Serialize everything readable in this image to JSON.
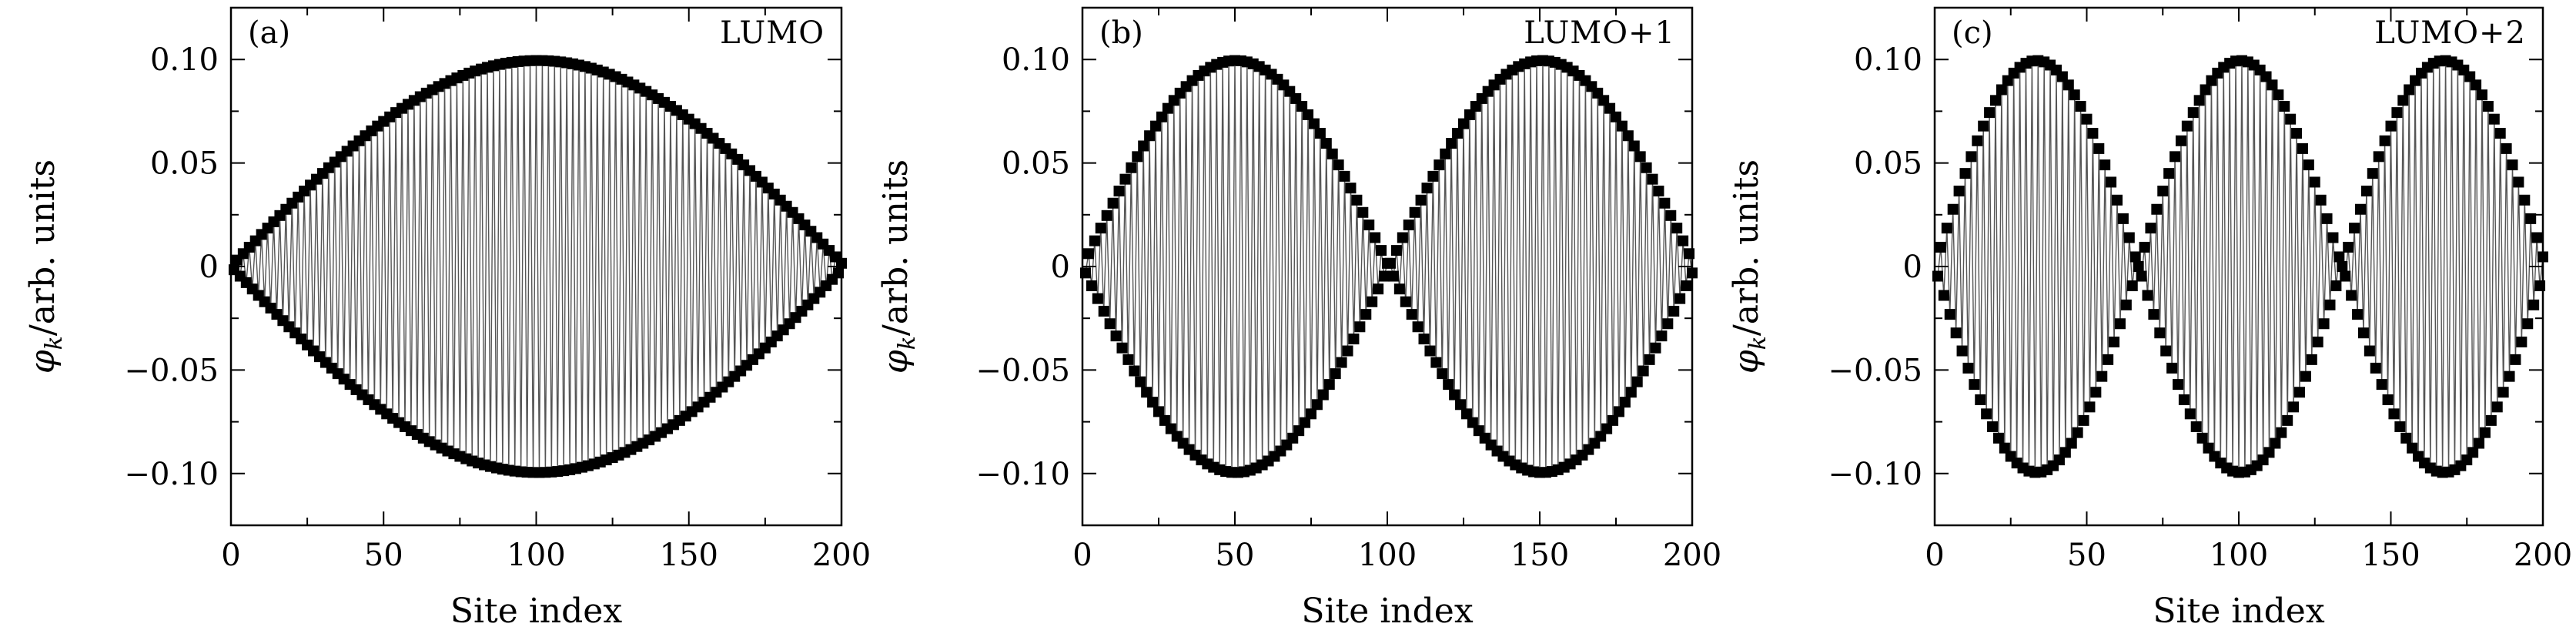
{
  "chart_data": [
    {
      "type": "line",
      "panel_label": "(a)",
      "title": "LUMO",
      "xlabel": "Site index",
      "ylabel": "φk/arb. units",
      "ylabel_main": "φ",
      "ylabel_sub": "k",
      "ylabel_rest": "/arb. units",
      "xlim": [
        0,
        200
      ],
      "ylim": [
        -0.125,
        0.125
      ],
      "xticks": [
        0,
        50,
        100,
        150,
        200
      ],
      "xtick_labels": [
        "0",
        "50",
        "100",
        "150",
        "200"
      ],
      "yticks": [
        0.1,
        0.05,
        0,
        -0.05,
        -0.1
      ],
      "ytick_labels": [
        "0.10",
        "0.05",
        "0",
        "−0.05",
        "−0.10"
      ],
      "series": [
        {
          "marker": "square",
          "style": "markers-with-thin-line",
          "formula": "y = 0.0995 * (-1)^n * sin(1 * pi * n / 201), n = 1..200",
          "n_start": 1,
          "n_end": 200,
          "amplitude": 0.0995,
          "envelope_halfwaves": 1,
          "alternating_sign": true
        }
      ],
      "grid": false,
      "legend": "none"
    },
    {
      "type": "line",
      "panel_label": "(b)",
      "title": "LUMO+1",
      "xlabel": "Site index",
      "ylabel": "φk/arb. units",
      "ylabel_main": "φ",
      "ylabel_sub": "k",
      "ylabel_rest": "/arb. units",
      "xlim": [
        0,
        200
      ],
      "ylim": [
        -0.125,
        0.125
      ],
      "xticks": [
        0,
        50,
        100,
        150,
        200
      ],
      "xtick_labels": [
        "0",
        "50",
        "100",
        "150",
        "200"
      ],
      "yticks": [
        0.1,
        0.05,
        0,
        -0.05,
        -0.1
      ],
      "ytick_labels": [
        "0.10",
        "0.05",
        "0",
        "−0.05",
        "−0.10"
      ],
      "series": [
        {
          "marker": "square",
          "style": "markers-with-thin-line",
          "formula": "y = 0.0995 * (-1)^n * sin(2 * pi * n / 201), n = 1..200",
          "n_start": 1,
          "n_end": 200,
          "amplitude": 0.0995,
          "envelope_halfwaves": 2,
          "alternating_sign": true
        }
      ],
      "grid": false,
      "legend": "none"
    },
    {
      "type": "line",
      "panel_label": "(c)",
      "title": "LUMO+2",
      "xlabel": "Site index",
      "ylabel": "φk/arb. units",
      "ylabel_main": "φ",
      "ylabel_sub": "k",
      "ylabel_rest": "/arb. units",
      "xlim": [
        0,
        200
      ],
      "ylim": [
        -0.125,
        0.125
      ],
      "xticks": [
        0,
        50,
        100,
        150,
        200
      ],
      "xtick_labels": [
        "0",
        "50",
        "100",
        "150",
        "200"
      ],
      "yticks": [
        0.1,
        0.05,
        0,
        -0.05,
        -0.1
      ],
      "ytick_labels": [
        "0.10",
        "0.05",
        "0",
        "−0.05",
        "−0.10"
      ],
      "series": [
        {
          "marker": "square",
          "style": "markers-with-thin-line",
          "formula": "y = 0.0995 * (-1)^n * sin(3 * pi * n / 201), n = 1..200",
          "n_start": 1,
          "n_end": 200,
          "amplitude": 0.0995,
          "envelope_halfwaves": 3,
          "alternating_sign": true
        }
      ],
      "grid": false,
      "legend": "none"
    }
  ]
}
